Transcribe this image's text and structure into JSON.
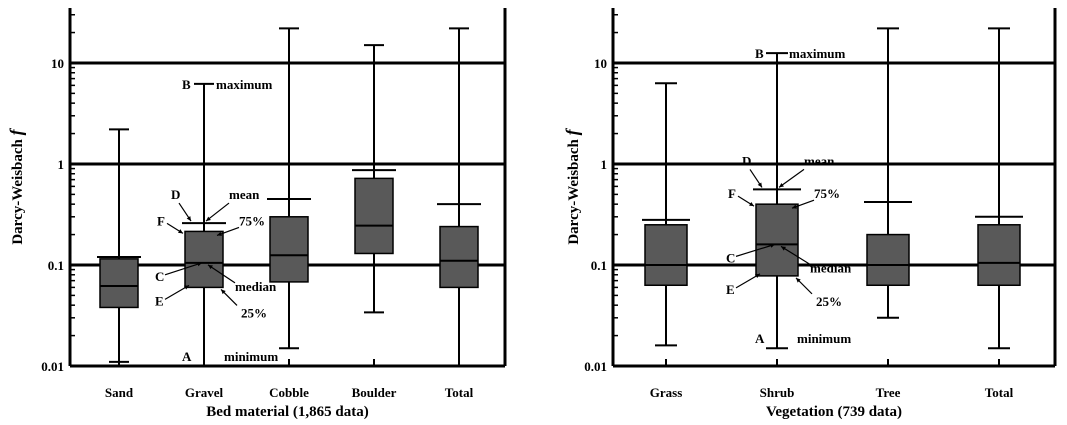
{
  "chart_data": [
    {
      "type": "box",
      "xlabel": "Bed material (1,865 data)",
      "ylabel_prefix": "Darcy-Weisbach ",
      "ylabel_symbol": "f",
      "yscale": "log",
      "ylim": [
        0.01,
        35
      ],
      "yticks": [
        0.01,
        0.1,
        1,
        10
      ],
      "yticklabels": [
        "0.01",
        "0.1",
        "1",
        "10"
      ],
      "categories": [
        "Sand",
        "Gravel",
        "Cobble",
        "Boulder",
        "Total"
      ],
      "boxes": [
        {
          "min": 0.011,
          "q1": 0.038,
          "median": 0.062,
          "q3": 0.115,
          "max": 2.2,
          "mean": 0.12
        },
        {
          "min": 0.01,
          "q1": 0.06,
          "median": 0.105,
          "q3": 0.215,
          "max": 6.2,
          "mean": 0.26
        },
        {
          "min": 0.015,
          "q1": 0.068,
          "median": 0.125,
          "q3": 0.3,
          "max": 22,
          "mean": 0.45
        },
        {
          "min": 0.034,
          "q1": 0.13,
          "median": 0.245,
          "q3": 0.72,
          "max": 15,
          "mean": 0.87
        },
        {
          "min": 0.01,
          "q1": 0.06,
          "median": 0.11,
          "q3": 0.24,
          "max": 22,
          "mean": 0.4
        }
      ],
      "annotations": {
        "A": "A",
        "minimum": "minimum",
        "B": "B",
        "maximum": "maximum",
        "C": "C",
        "D": "D",
        "E": "E",
        "F": "F",
        "mean": "mean",
        "p75": "75%",
        "median": "median",
        "p25": "25%"
      }
    },
    {
      "type": "box",
      "xlabel": "Vegetation (739 data)",
      "ylabel_prefix": "Darcy-Weisbach ",
      "ylabel_symbol": "f",
      "yscale": "log",
      "ylim": [
        0.01,
        35
      ],
      "yticks": [
        0.01,
        0.1,
        1,
        10
      ],
      "yticklabels": [
        "0.01",
        "0.1",
        "1",
        "10"
      ],
      "categories": [
        "Grass",
        "Shrub",
        "Tree",
        "Total"
      ],
      "boxes": [
        {
          "min": 0.016,
          "q1": 0.063,
          "median": 0.1,
          "q3": 0.25,
          "max": 6.3,
          "mean": 0.28
        },
        {
          "min": 0.015,
          "q1": 0.078,
          "median": 0.16,
          "q3": 0.4,
          "max": 12.5,
          "mean": 0.56
        },
        {
          "min": 0.03,
          "q1": 0.063,
          "median": 0.1,
          "q3": 0.2,
          "max": 22,
          "mean": 0.42
        },
        {
          "min": 0.015,
          "q1": 0.063,
          "median": 0.105,
          "q3": 0.25,
          "max": 22,
          "mean": 0.3
        }
      ],
      "annotations": {
        "A": "A",
        "minimum": "minimum",
        "B": "B",
        "maximum": "maximum",
        "C": "C",
        "D": "D",
        "E": "E",
        "F": "F",
        "mean": "mean",
        "p75": "75%",
        "median": "median",
        "p25": "25%"
      }
    }
  ],
  "colors": {
    "box_fill": "#595959",
    "line": "#000000"
  }
}
